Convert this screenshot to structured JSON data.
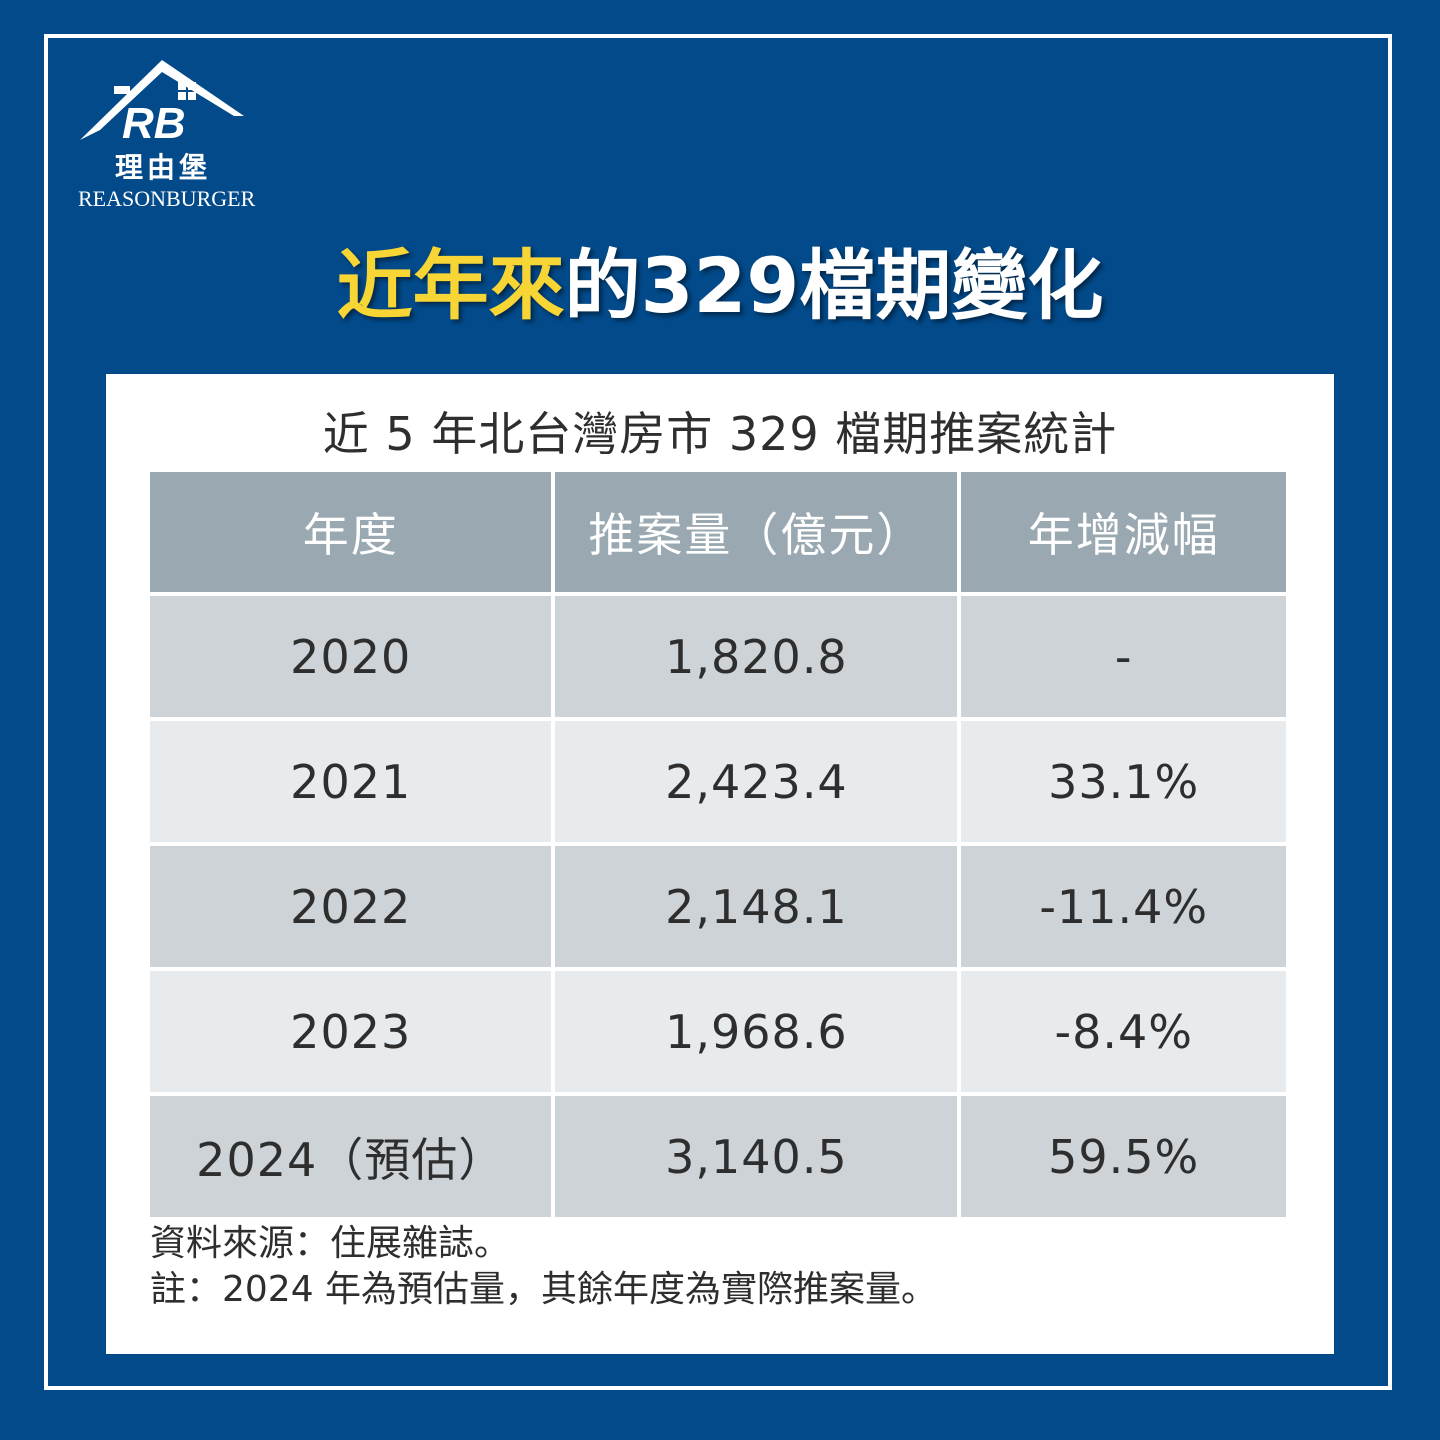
{
  "brand": {
    "initials": "RB",
    "name_cn": "理由堡",
    "name_en": "REASONBURGER"
  },
  "headline": {
    "highlight": "近年來",
    "rest": "的329檔期變化"
  },
  "table": {
    "title": "近 5 年北台灣房市 329 檔期推案統計",
    "headers": [
      "年度",
      "推案量（億元）",
      "年增減幅"
    ],
    "rows": [
      [
        "2020",
        "1,820.8",
        "-"
      ],
      [
        "2021",
        "2,423.4",
        "33.1%"
      ],
      [
        "2022",
        "2,148.1",
        "-11.4%"
      ],
      [
        "2023",
        "1,968.6",
        "-8.4%"
      ],
      [
        "2024（預估）",
        "3,140.5",
        "59.5%"
      ]
    ]
  },
  "notes": {
    "source": "資料來源：住展雜誌。",
    "remark": "註：2024 年為預估量，其餘年度為實際推案量。"
  },
  "colors": {
    "background": "#024a8a",
    "highlight": "#f7d535",
    "header_cell": "#9aa9b1",
    "row_dark": "#cdd3d7",
    "row_light": "#e8ebee"
  }
}
